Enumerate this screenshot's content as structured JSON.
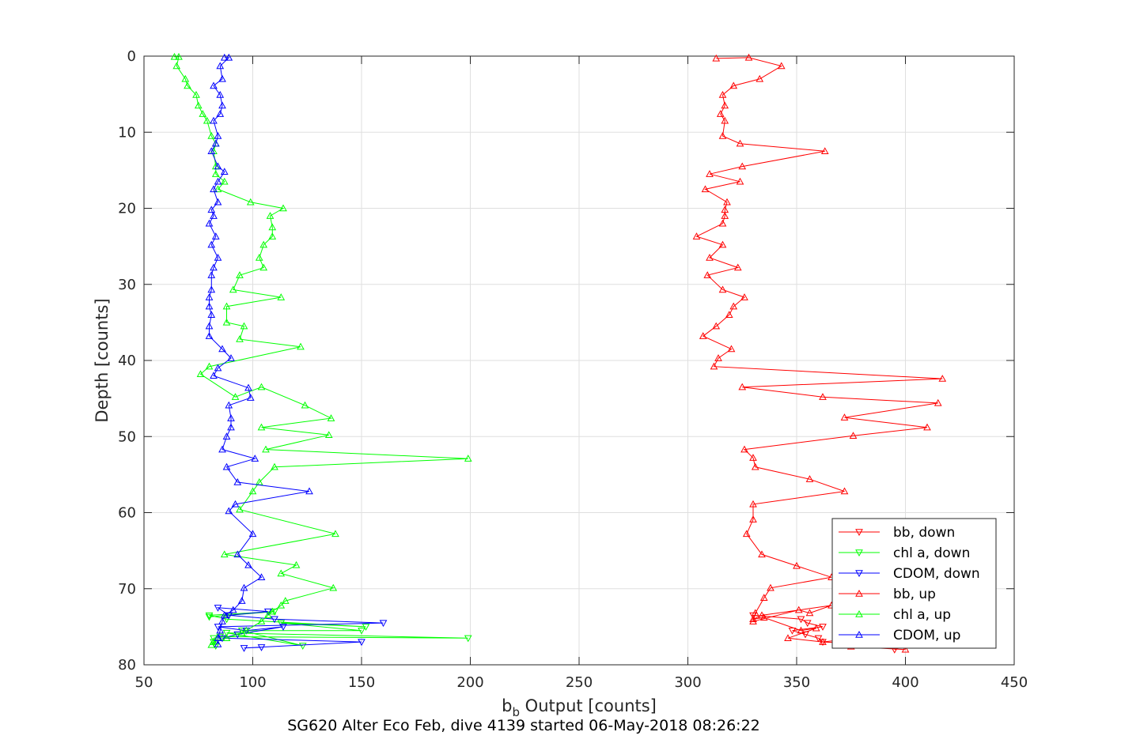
{
  "chart_data": {
    "type": "line",
    "xlabel": "b",
    "xlabel_sub": "b",
    "xlabel_rest": " Output [counts]",
    "ylabel": "Depth [counts]",
    "caption": "SG620 Alter Eco Feb, dive 4139 started 06-May-2018 08:26:22",
    "xlim": [
      50,
      450
    ],
    "ylim": [
      0,
      80
    ],
    "y_reversed": true,
    "xticks": [
      50,
      100,
      150,
      200,
      250,
      300,
      350,
      400,
      450
    ],
    "yticks": [
      0,
      10,
      20,
      30,
      40,
      50,
      60,
      70,
      80
    ],
    "grid": true,
    "legend_position": "bottom-right",
    "series": [
      {
        "name": "bb, down",
        "color": "#ff0000",
        "marker": "triangle-down",
        "x": [
          395,
          400,
          362,
          360,
          354,
          348,
          362,
          355,
          352,
          330
        ],
        "y": [
          78,
          77.5,
          77,
          76.5,
          76,
          75.5,
          75,
          74.5,
          74,
          73.5
        ]
      },
      {
        "name": "chl a, down",
        "color": "#00ff00",
        "marker": "triangle-down",
        "x": [
          83,
          82,
          82,
          85,
          199,
          88,
          123,
          95,
          150,
          113,
          152,
          88,
          80,
          110,
          80
        ],
        "y": [
          77.5,
          77,
          76.5,
          76.3,
          76.5,
          75.8,
          77.5,
          75.5,
          75.5,
          74.5,
          75,
          74,
          73.5,
          73,
          73.7
        ]
      },
      {
        "name": "CDOM, down",
        "color": "#0000ff",
        "marker": "triangle-down",
        "x": [
          104,
          96,
          150,
          86,
          93,
          114,
          97,
          84,
          160,
          110,
          89,
          107,
          84,
          89
        ],
        "y": [
          77.7,
          77.8,
          77,
          76.5,
          76,
          75,
          75.5,
          75,
          74.5,
          74,
          73.5,
          73,
          72.5,
          73.5
        ]
      },
      {
        "name": "bb, up",
        "color": "#ff0000",
        "marker": "triangle-up",
        "x": [
          313,
          328,
          343,
          333,
          321,
          316,
          317,
          315,
          317,
          316,
          324,
          363,
          325,
          310,
          324,
          308,
          318,
          317,
          317,
          316,
          304,
          316,
          310,
          323,
          309,
          316,
          326,
          321,
          319,
          313,
          307,
          320,
          314,
          312,
          417,
          325,
          362,
          415,
          372,
          410,
          376,
          326,
          330,
          331,
          356,
          372,
          330,
          330,
          327,
          334,
          350,
          366,
          338,
          335,
          331,
          330,
          351,
          356,
          366,
          334,
          330,
          335,
          352,
          359,
          346,
          362,
          368,
          375,
          400
        ],
        "y": [
          0.3,
          0.2,
          1.3,
          3,
          3.9,
          5.1,
          6.5,
          7.6,
          8.5,
          10.5,
          11.5,
          12.5,
          14.5,
          15.5,
          16.5,
          17.5,
          19.2,
          20.2,
          21,
          22,
          23.7,
          24.8,
          26.5,
          27.8,
          28.8,
          30.7,
          31.7,
          32.9,
          34,
          35.5,
          36.8,
          38.5,
          39.7,
          40.8,
          42.4,
          43.5,
          44.8,
          45.6,
          47.5,
          48.8,
          49.9,
          51.7,
          52.8,
          54,
          55.6,
          57.2,
          58.9,
          60.9,
          62.8,
          65.5,
          67,
          68.5,
          69.9,
          71.2,
          73.2,
          74.3,
          72.8,
          73.2,
          72.2,
          73.5,
          74,
          73.8,
          75.5,
          75.2,
          76.5,
          77,
          76.8,
          77.6,
          78
        ]
      },
      {
        "name": "chl a, up",
        "color": "#00ff00",
        "marker": "triangle-up",
        "x": [
          64,
          66,
          65,
          69,
          70,
          74,
          75,
          77,
          79,
          81,
          83,
          82,
          83,
          83,
          87,
          84,
          99,
          114,
          108,
          109,
          109,
          105,
          103,
          105,
          94,
          91,
          113,
          88,
          88,
          96,
          94,
          122,
          80,
          76,
          92,
          104,
          124,
          136,
          104,
          135,
          106,
          199,
          110,
          103,
          100,
          94,
          138,
          87,
          120,
          113,
          137,
          115,
          113,
          109,
          107,
          104,
          97,
          95,
          88,
          82,
          81
        ],
        "y": [
          0.1,
          0.1,
          1.3,
          3,
          3.9,
          5.1,
          6.5,
          7.6,
          8.5,
          10.5,
          11.5,
          12.5,
          14.5,
          15.5,
          16.5,
          17.5,
          19.2,
          20,
          21,
          22.5,
          23.7,
          24.8,
          26.5,
          27.8,
          28.8,
          30.7,
          31.7,
          32.9,
          35,
          35.5,
          37.2,
          38.2,
          40.8,
          41.8,
          44.8,
          43.5,
          45.9,
          47.6,
          48.8,
          49.8,
          51.7,
          52.9,
          54,
          56,
          57.2,
          59.6,
          62.8,
          65.5,
          66.9,
          68,
          69.9,
          71.6,
          72.2,
          73,
          73.5,
          74.3,
          75.5,
          75.8,
          76.5,
          77,
          77.4
        ]
      },
      {
        "name": "CDOM, up",
        "color": "#0000ff",
        "marker": "triangle-up",
        "x": [
          87,
          89,
          85,
          86,
          82,
          85,
          86,
          85,
          82,
          84,
          83,
          81,
          84,
          87,
          84,
          82,
          84,
          81,
          82,
          80,
          83,
          81,
          84,
          82,
          81,
          81,
          80,
          80,
          81,
          80,
          80,
          86,
          90,
          84,
          82,
          98,
          99,
          89,
          90,
          90,
          88,
          86,
          101,
          88,
          93,
          126,
          92,
          89,
          100,
          93,
          98,
          104,
          96,
          95,
          91,
          87,
          86,
          85,
          84,
          84
        ],
        "y": [
          0.2,
          0.2,
          1.3,
          3,
          3.9,
          5.1,
          6.5,
          7.6,
          8.5,
          10.5,
          11.5,
          12.5,
          14.5,
          15.2,
          16.5,
          17.5,
          19.2,
          20.2,
          21,
          22,
          23.7,
          24.8,
          26.5,
          27.8,
          28.8,
          30.7,
          31.7,
          32.9,
          34,
          35.5,
          36.8,
          38.5,
          39.7,
          41,
          42,
          43.6,
          44.9,
          45.9,
          47.6,
          48.8,
          50,
          51.7,
          52.9,
          54,
          56,
          57.2,
          58.9,
          59.8,
          62.8,
          65.5,
          66.9,
          68.5,
          69.9,
          71.6,
          72.8,
          73.5,
          74.3,
          75.5,
          76.5,
          77.3
        ]
      }
    ]
  }
}
